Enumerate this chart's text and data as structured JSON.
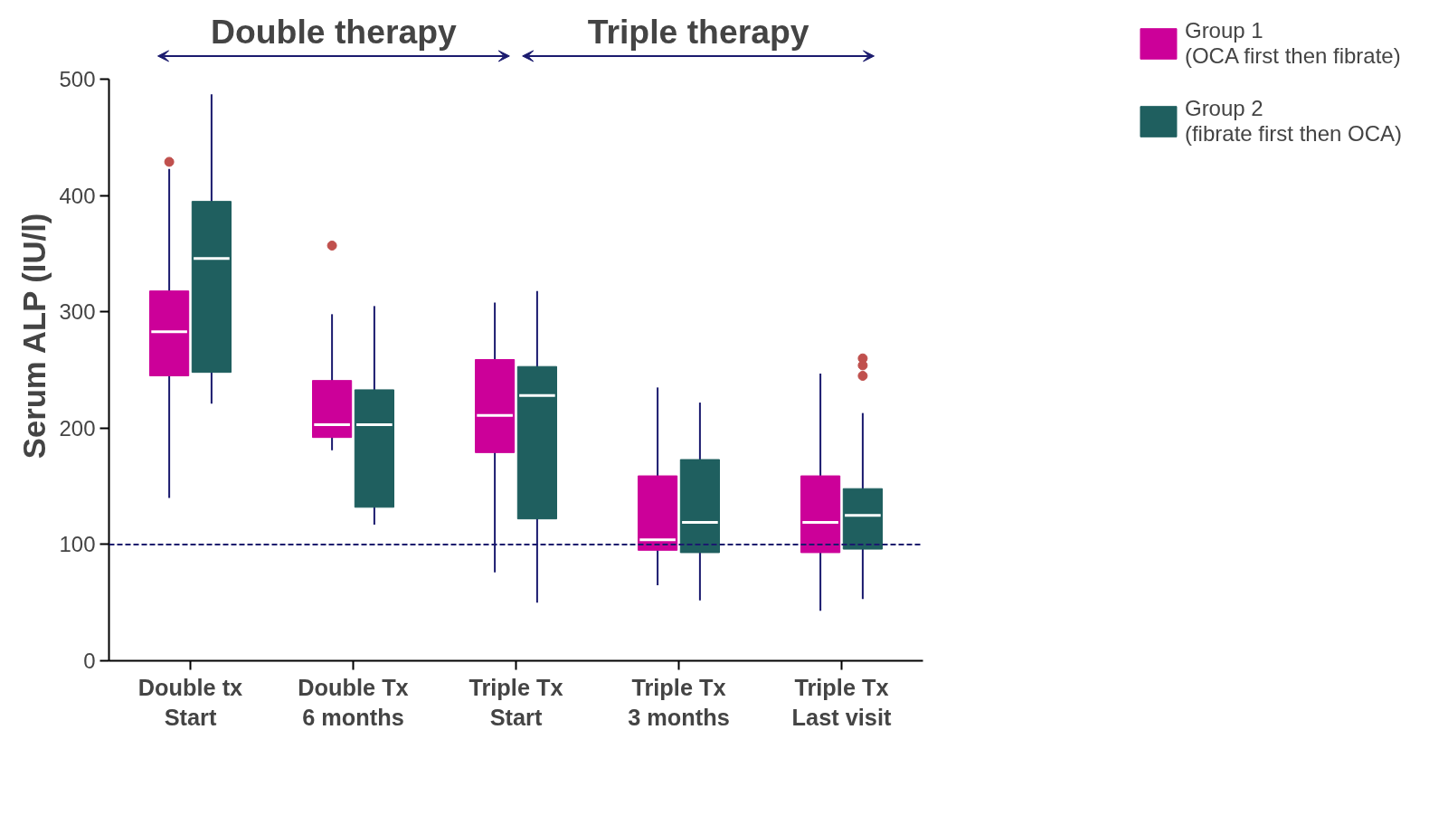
{
  "chart_data": {
    "type": "box",
    "ylabel": "Serum ALP (IU/l)",
    "categories": [
      "Double tx\nStart",
      "Double Tx\n6 months",
      "Triple Tx\nStart",
      "Triple Tx\n3 months",
      "Triple Tx\nLast visit"
    ],
    "ylim": [
      0,
      500
    ],
    "yticks": [
      0,
      100,
      200,
      300,
      400,
      500
    ],
    "grid": false,
    "legend": "right",
    "annotations": [
      "Double therapy",
      "Triple therapy"
    ],
    "ref_lines": [
      {
        "axis": "y",
        "value": 100,
        "color": "#1a1a6e",
        "line_style": "dashed"
      }
    ],
    "series": [
      {
        "name": "Group 1\n(OCA first then fibrate)",
        "color": "#cc0099",
        "boxes": [
          {
            "low": 140,
            "q1": 245,
            "median": 283,
            "q3": 318,
            "high": 423,
            "outliers": [
              429
            ]
          },
          {
            "low": 181,
            "q1": 192,
            "median": 203,
            "q3": 241,
            "high": 298,
            "outliers": [
              357
            ]
          },
          {
            "low": 76,
            "q1": 179,
            "median": 211,
            "q3": 259,
            "high": 308
          },
          {
            "low": 65,
            "q1": 95,
            "median": 104,
            "q3": 159,
            "high": 235
          },
          {
            "low": 43,
            "q1": 93,
            "median": 119,
            "q3": 159,
            "high": 247
          }
        ]
      },
      {
        "name": "Group 2\n(fibrate first then OCA)",
        "color": "#1f5f5f",
        "boxes": [
          {
            "low": 221,
            "q1": 248,
            "median": 346,
            "q3": 395,
            "high": 487
          },
          {
            "low": 117,
            "q1": 132,
            "median": 203,
            "q3": 233,
            "high": 305
          },
          {
            "low": 50,
            "q1": 122,
            "median": 228,
            "q3": 253,
            "high": 318
          },
          {
            "low": 52,
            "q1": 93,
            "median": 119,
            "q3": 173,
            "high": 222
          },
          {
            "low": 53,
            "q1": 96,
            "median": 125,
            "q3": 148,
            "high": 213,
            "outliers": [
              260,
              254,
              245
            ]
          }
        ]
      }
    ]
  }
}
